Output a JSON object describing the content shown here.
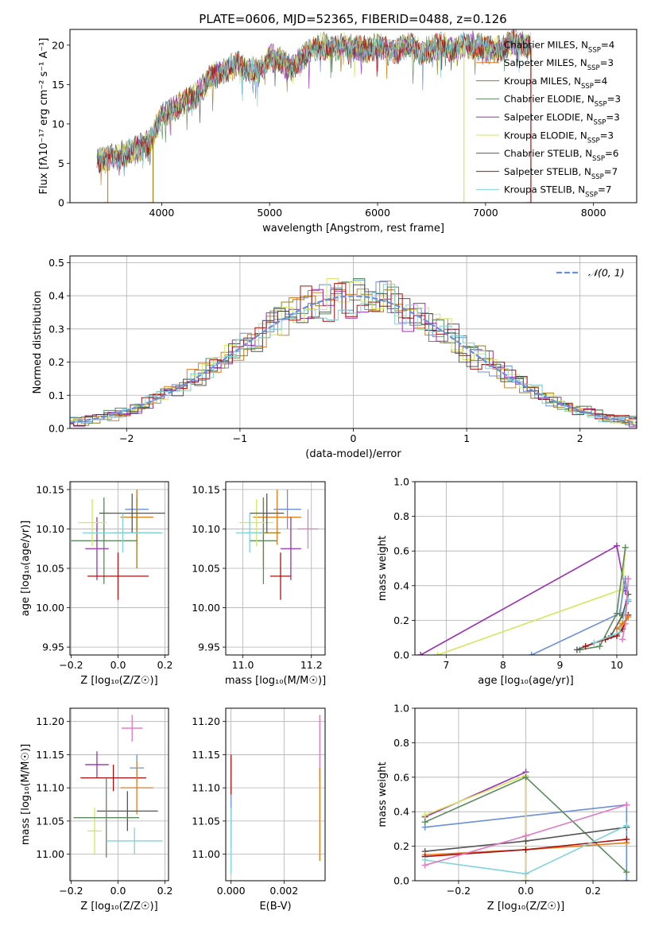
{
  "figure_title": "PLATE=0606, MJD=52365, FIBERID=0488, z=0.126",
  "colors": [
    "#6a8fdc",
    "#e47b1c",
    "#a57a1a",
    "#5a8a5e",
    "#9b2fb5",
    "#d4e65a",
    "#555555",
    "#aa1010",
    "#7fd3d8"
  ],
  "chart_data": [
    {
      "id": "spectrum",
      "type": "line",
      "title": "PLATE=0606, MJD=52365, FIBERID=0488, z=0.126",
      "xlabel": "wavelength [Angstrom, rest frame]",
      "ylabel": "Flux [fλ10⁻¹⁷ erg cm⁻² s⁻¹ A⁻¹]",
      "xlim": [
        3150,
        8400
      ],
      "ylim": [
        0,
        22
      ],
      "xticks": [
        4000,
        5000,
        6000,
        7000,
        8000
      ],
      "yticks": [
        0,
        5,
        10,
        15,
        20
      ],
      "grid": false,
      "legend_position": "top-right",
      "observed_flux_envelope": {
        "x": [
          3400,
          3500,
          3600,
          3700,
          3800,
          3900,
          4000,
          4100,
          4200,
          4300,
          4400,
          4500,
          4600,
          4700,
          4800,
          4900,
          5000,
          5100,
          5200,
          5300,
          5400,
          5500,
          5600,
          5700,
          5800,
          5900,
          6000,
          6100,
          6200,
          6300,
          6400,
          6500,
          6600,
          6700,
          6800,
          6900,
          7000,
          7100,
          7200,
          7300,
          7400
        ],
        "y": [
          5.2,
          5.6,
          6.0,
          6.4,
          7.0,
          7.8,
          11.0,
          12.0,
          12.5,
          13.5,
          15.0,
          16.5,
          17.0,
          17.5,
          17.0,
          16.5,
          18.5,
          18.0,
          17.0,
          18.5,
          19.5,
          20.0,
          19.5,
          20.0,
          19.5,
          19.5,
          20.0,
          19.0,
          19.5,
          20.0,
          19.0,
          19.5,
          20.0,
          19.5,
          20.0,
          20.0,
          19.5,
          19.5,
          20.0,
          20.5,
          20.0
        ]
      },
      "truncation_drops": {
        "x": [
          3500,
          3920,
          6800,
          7420
        ],
        "y": [
          0,
          0,
          0,
          0
        ]
      },
      "series": [
        {
          "name": "Chabrier MILES, N_SSP=4",
          "name_base": "Chabrier MILES, N",
          "name_sub": "SSP",
          "name_tail": "=4",
          "color": "#6a8fdc"
        },
        {
          "name": "Salpeter MILES, N_SSP=3",
          "name_base": "Salpeter MILES, N",
          "name_sub": "SSP",
          "name_tail": "=3",
          "color": "#e47b1c"
        },
        {
          "name": "Kroupa MILES, N_SSP=4",
          "name_base": "Kroupa MILES, N",
          "name_sub": "SSP",
          "name_tail": "=4",
          "color": "#a57a1a"
        },
        {
          "name": "Chabrier ELODIE, N_SSP=3",
          "name_base": "Chabrier ELODIE, N",
          "name_sub": "SSP",
          "name_tail": "=3",
          "color": "#5a8a5e"
        },
        {
          "name": "Salpeter ELODIE, N_SSP=3",
          "name_base": "Salpeter ELODIE, N",
          "name_sub": "SSP",
          "name_tail": "=3",
          "color": "#9b2fb5"
        },
        {
          "name": "Kroupa ELODIE, N_SSP=3",
          "name_base": "Kroupa ELODIE, N",
          "name_sub": "SSP",
          "name_tail": "=3",
          "color": "#d4e65a"
        },
        {
          "name": "Chabrier STELIB, N_SSP=6",
          "name_base": "Chabrier STELIB, N",
          "name_sub": "SSP",
          "name_tail": "=6",
          "color": "#555555"
        },
        {
          "name": "Salpeter STELIB, N_SSP=7",
          "name_base": "Salpeter STELIB, N",
          "name_sub": "SSP",
          "name_tail": "=7",
          "color": "#aa1010"
        },
        {
          "name": "Kroupa STELIB, N_SSP=7",
          "name_base": "Kroupa STELIB, N",
          "name_sub": "SSP",
          "name_tail": "=7",
          "color": "#7fd3d8"
        }
      ]
    },
    {
      "id": "residuals",
      "type": "line",
      "xlabel": "(data-model)/error",
      "ylabel": "Normed distribution",
      "xlim": [
        -2.5,
        2.5
      ],
      "ylim": [
        0,
        0.52
      ],
      "xticks": [
        -2,
        -1,
        0,
        1,
        2
      ],
      "yticks": [
        0.0,
        0.1,
        0.2,
        0.3,
        0.4,
        0.5
      ],
      "grid": true,
      "legend_position": "top-right",
      "gaussian": {
        "name": "𝒩(0, 1)",
        "mean": 0,
        "sigma": 1,
        "color": "#6a8fdc"
      },
      "histogram_bin_width": 0.1
    },
    {
      "id": "age-vs-Z",
      "type": "scatter",
      "xlabel": "Z [log₁₀(Z/Z☉)]",
      "ylabel": "age  [log₁₀(age/yr)]",
      "xlim": [
        -0.205,
        0.215
      ],
      "ylim": [
        9.94,
        10.16
      ],
      "xticks": [
        -0.2,
        0.0,
        0.2
      ],
      "yticks": [
        9.95,
        10.0,
        10.05,
        10.1,
        10.15
      ],
      "grid": true,
      "points": [
        {
          "x": 0.08,
          "y": 10.125,
          "xerr": 0.05,
          "yerr": 0.025,
          "color": "#6a8fdc"
        },
        {
          "x": 0.08,
          "y": 10.115,
          "xerr": 0.07,
          "yerr": 0.035,
          "color": "#e47b1c"
        },
        {
          "x": 0.08,
          "y": 10.095,
          "xerr": 0.1,
          "yerr": 0.045,
          "color": "#a57a1a"
        },
        {
          "x": -0.06,
          "y": 10.085,
          "xerr": 0.14,
          "yerr": 0.055,
          "color": "#5a8a5e"
        },
        {
          "x": -0.09,
          "y": 10.075,
          "xerr": 0.05,
          "yerr": 0.04,
          "color": "#9b2fb5"
        },
        {
          "x": -0.11,
          "y": 10.108,
          "xerr": 0.06,
          "yerr": 0.03,
          "color": "#d4e65a"
        },
        {
          "x": 0.06,
          "y": 10.12,
          "xerr": 0.14,
          "yerr": 0.025,
          "color": "#555555"
        },
        {
          "x": 0.0,
          "y": 10.04,
          "xerr": 0.13,
          "yerr": 0.03,
          "color": "#aa1010"
        },
        {
          "x": 0.02,
          "y": 10.095,
          "xerr": 0.17,
          "yerr": 0.025,
          "color": "#7fd3d8"
        }
      ]
    },
    {
      "id": "age-vs-mass",
      "type": "scatter",
      "xlabel": "mass [log₁₀(M/M☉)]",
      "ylabel": "",
      "xlim": [
        10.95,
        11.24
      ],
      "ylim": [
        9.94,
        10.16
      ],
      "xticks": [
        11.0,
        11.2
      ],
      "yticks": [
        9.95,
        10.0,
        10.05,
        10.1,
        10.15
      ],
      "grid": true,
      "points": [
        {
          "x": 11.13,
          "y": 10.125,
          "xerr": 0.04,
          "yerr": 0.025,
          "color": "#6a8fdc"
        },
        {
          "x": 11.1,
          "y": 10.115,
          "xerr": 0.07,
          "yerr": 0.035,
          "color": "#e47b1c"
        },
        {
          "x": 11.06,
          "y": 10.095,
          "xerr": 0.05,
          "yerr": 0.045,
          "color": "#a57a1a"
        },
        {
          "x": 11.06,
          "y": 10.085,
          "xerr": 0.04,
          "yerr": 0.055,
          "color": "#5a8a5e"
        },
        {
          "x": 11.14,
          "y": 10.075,
          "xerr": 0.03,
          "yerr": 0.04,
          "color": "#9b2fb5"
        },
        {
          "x": 11.04,
          "y": 10.108,
          "xerr": 0.05,
          "yerr": 0.03,
          "color": "#d4e65a"
        },
        {
          "x": 11.07,
          "y": 10.12,
          "xerr": 0.05,
          "yerr": 0.025,
          "color": "#555555"
        },
        {
          "x": 11.11,
          "y": 10.04,
          "xerr": 0.03,
          "yerr": 0.03,
          "color": "#aa1010"
        },
        {
          "x": 11.02,
          "y": 10.095,
          "xerr": 0.04,
          "yerr": 0.025,
          "color": "#7fd3d8"
        },
        {
          "x": 11.19,
          "y": 10.1,
          "xerr": 0.03,
          "yerr": 0.025,
          "color": "#e377c2"
        }
      ]
    },
    {
      "id": "weight-vs-age",
      "type": "line",
      "xlabel": "age  [log₁₀(age/yr)]",
      "ylabel": "mass weight",
      "xlim": [
        6.45,
        10.35
      ],
      "ylim": [
        0,
        1
      ],
      "xticks": [
        7,
        8,
        9,
        10
      ],
      "yticks": [
        0.0,
        0.2,
        0.4,
        0.6,
        0.8,
        1.0
      ],
      "grid": true,
      "series": [
        {
          "color": "#9b2fb5",
          "x": [
            6.55,
            10.0,
            10.15
          ],
          "y": [
            0.0,
            0.63,
            0.37
          ]
        },
        {
          "color": "#d4e65a",
          "x": [
            6.85,
            10.1,
            10.15,
            10.05
          ],
          "y": [
            0.0,
            0.38,
            0.62,
            0.15
          ]
        },
        {
          "color": "#6a8fdc",
          "x": [
            8.5,
            10.05,
            10.15,
            10.2
          ],
          "y": [
            0.0,
            0.24,
            0.44,
            0.31
          ]
        },
        {
          "color": "#5a8a5e",
          "x": [
            9.35,
            9.7,
            10.0,
            10.15
          ],
          "y": [
            0.03,
            0.05,
            0.24,
            0.62
          ]
        },
        {
          "color": "#555555",
          "x": [
            9.3,
            9.9,
            10.1,
            10.2
          ],
          "y": [
            0.03,
            0.11,
            0.23,
            0.35
          ]
        },
        {
          "color": "#aa1010",
          "x": [
            9.45,
            9.8,
            10.0,
            10.1,
            10.2
          ],
          "y": [
            0.05,
            0.09,
            0.11,
            0.15,
            0.23
          ]
        },
        {
          "color": "#7fd3d8",
          "x": [
            9.6,
            10.05,
            10.2
          ],
          "y": [
            0.07,
            0.13,
            0.32
          ]
        },
        {
          "color": "#e377c2",
          "x": [
            10.1,
            10.15,
            10.2
          ],
          "y": [
            0.09,
            0.18,
            0.44
          ]
        },
        {
          "color": "#e47b1c",
          "x": [
            10.0,
            10.1,
            10.2
          ],
          "y": [
            0.15,
            0.18,
            0.22
          ]
        }
      ]
    },
    {
      "id": "mass-vs-Z",
      "type": "scatter",
      "xlabel": "Z [log₁₀(Z/Z☉)]",
      "ylabel": "mass [log₁₀(M/M☉)]",
      "xlim": [
        -0.205,
        0.215
      ],
      "ylim": [
        10.96,
        11.22
      ],
      "xticks": [
        -0.2,
        0.0,
        0.2
      ],
      "yticks": [
        11.0,
        11.05,
        11.1,
        11.15,
        11.2
      ],
      "grid": true,
      "points": [
        {
          "x": 0.06,
          "y": 11.19,
          "xerr": 0.045,
          "yerr": 0.02,
          "color": "#e377c2"
        },
        {
          "x": 0.08,
          "y": 11.13,
          "xerr": 0.03,
          "yerr": 0.02,
          "color": "#6a8fdc"
        },
        {
          "x": -0.09,
          "y": 11.135,
          "xerr": 0.05,
          "yerr": 0.02,
          "color": "#9b2fb5"
        },
        {
          "x": -0.02,
          "y": 11.115,
          "xerr": 0.14,
          "yerr": 0.02,
          "color": "#aa1010"
        },
        {
          "x": 0.08,
          "y": 11.1,
          "xerr": 0.07,
          "yerr": 0.04,
          "color": "#e47b1c"
        },
        {
          "x": -0.1,
          "y": 11.035,
          "xerr": 0.03,
          "yerr": 0.035,
          "color": "#d4e65a"
        },
        {
          "x": 0.04,
          "y": 11.065,
          "xerr": 0.13,
          "yerr": 0.03,
          "color": "#555555"
        },
        {
          "x": -0.05,
          "y": 11.055,
          "xerr": 0.14,
          "yerr": 0.06,
          "color": "#5a8a5e"
        },
        {
          "x": 0.07,
          "y": 11.02,
          "xerr": 0.12,
          "yerr": 0.02,
          "color": "#7fd3d8"
        }
      ]
    },
    {
      "id": "mass-vs-EBV",
      "type": "scatter",
      "xlabel": "E(B-V)",
      "ylabel": "",
      "xlim": [
        -0.0002,
        0.00355
      ],
      "ylim": [
        10.96,
        11.22
      ],
      "xticks": [
        0.0,
        0.002
      ],
      "yticks": [
        11.0,
        11.05,
        11.1,
        11.15,
        11.2
      ],
      "grid": true,
      "points": [
        {
          "x": 0.0,
          "y": 11.12,
          "yerr": 0.03,
          "color": "#aa1010"
        },
        {
          "x": 0.0,
          "y": 11.05,
          "yerr": 0.04,
          "color": "#6a8fdc"
        },
        {
          "x": 0.0,
          "y": 11.02,
          "yerr": 0.05,
          "color": "#7fd3d8"
        },
        {
          "x": 0.00335,
          "y": 11.16,
          "yerr": 0.05,
          "color": "#e377c2"
        },
        {
          "x": 0.00335,
          "y": 11.06,
          "yerr": 0.07,
          "color": "#e47b1c"
        }
      ]
    },
    {
      "id": "weight-vs-Z",
      "type": "line",
      "xlabel": "Z [log₁₀(Z/Z☉)]",
      "ylabel": "mass weight",
      "xlim": [
        -0.33,
        0.33
      ],
      "ylim": [
        0,
        1
      ],
      "xticks": [
        -0.2,
        0.0,
        0.2
      ],
      "yticks": [
        0.0,
        0.2,
        0.4,
        0.6,
        0.8,
        1.0
      ],
      "grid": true,
      "series": [
        {
          "color": "#6a8fdc",
          "x": [
            -0.3,
            0.3,
            0.3
          ],
          "y": [
            0.31,
            0.44,
            0.0
          ]
        },
        {
          "color": "#9b2fb5",
          "x": [
            -0.3,
            0.0,
            0.0
          ],
          "y": [
            0.37,
            0.63,
            0.0
          ]
        },
        {
          "color": "#d4e65a",
          "x": [
            -0.3,
            0.0,
            0.0
          ],
          "y": [
            0.38,
            0.61,
            0.0
          ]
        },
        {
          "color": "#5a8a5e",
          "x": [
            -0.3,
            0.0,
            0.3
          ],
          "y": [
            0.34,
            0.6,
            0.05
          ]
        },
        {
          "color": "#555555",
          "x": [
            -0.3,
            0.0,
            0.3
          ],
          "y": [
            0.17,
            0.23,
            0.31
          ]
        },
        {
          "color": "#e47b1c",
          "x": [
            -0.3,
            0.0,
            0.3
          ],
          "y": [
            0.15,
            0.18,
            0.22
          ]
        },
        {
          "color": "#aa1010",
          "x": [
            -0.3,
            0.0,
            0.3
          ],
          "y": [
            0.14,
            0.18,
            0.24
          ]
        },
        {
          "color": "#7fd3d8",
          "x": [
            -0.3,
            0.0,
            0.3
          ],
          "y": [
            0.12,
            0.04,
            0.32
          ]
        },
        {
          "color": "#e377c2",
          "x": [
            -0.3,
            0.0,
            0.3
          ],
          "y": [
            0.09,
            0.26,
            0.44
          ]
        }
      ]
    }
  ]
}
